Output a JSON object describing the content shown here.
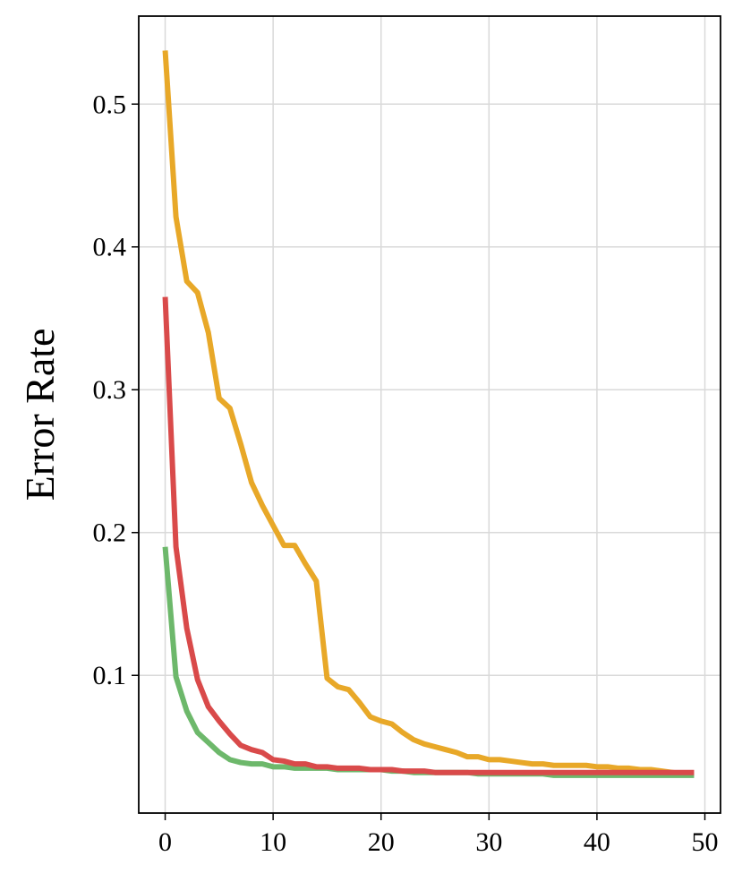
{
  "chart_data": {
    "type": "line",
    "y_label": "Error Rate",
    "x": [
      0,
      1,
      2,
      3,
      4,
      5,
      6,
      7,
      8,
      9,
      10,
      11,
      12,
      13,
      14,
      15,
      16,
      17,
      18,
      19,
      20,
      21,
      22,
      23,
      24,
      25,
      26,
      27,
      28,
      29,
      30,
      31,
      32,
      33,
      34,
      35,
      36,
      37,
      38,
      39,
      40,
      41,
      42,
      43,
      44,
      45,
      46,
      47,
      48,
      49
    ],
    "series": [
      {
        "color": "#e8a828",
        "values": [
          0.5375,
          0.421,
          0.376,
          0.368,
          0.34,
          0.294,
          0.287,
          0.262,
          0.235,
          0.219,
          0.205,
          0.191,
          0.191,
          0.178,
          0.166,
          0.098,
          0.092,
          0.09,
          0.081,
          0.071,
          0.068,
          0.066,
          0.06,
          0.055,
          0.052,
          0.05,
          0.048,
          0.046,
          0.043,
          0.043,
          0.041,
          0.041,
          0.04,
          0.039,
          0.038,
          0.038,
          0.037,
          0.037,
          0.037,
          0.037,
          0.036,
          0.036,
          0.035,
          0.035,
          0.034,
          0.034,
          0.033,
          0.032,
          0.031,
          0.031
        ]
      },
      {
        "color": "#6db86b",
        "values": [
          0.19,
          0.099,
          0.075,
          0.06,
          0.053,
          0.046,
          0.041,
          0.039,
          0.038,
          0.038,
          0.036,
          0.036,
          0.035,
          0.035,
          0.035,
          0.035,
          0.034,
          0.034,
          0.034,
          0.034,
          0.034,
          0.033,
          0.033,
          0.032,
          0.032,
          0.032,
          0.032,
          0.032,
          0.032,
          0.031,
          0.031,
          0.031,
          0.031,
          0.031,
          0.031,
          0.031,
          0.03,
          0.03,
          0.03,
          0.03,
          0.03,
          0.03,
          0.03,
          0.03,
          0.03,
          0.03,
          0.03,
          0.03,
          0.03,
          0.03
        ]
      },
      {
        "color": "#d94a4a",
        "values": [
          0.365,
          0.19,
          0.133,
          0.097,
          0.078,
          0.068,
          0.059,
          0.051,
          0.048,
          0.046,
          0.041,
          0.04,
          0.038,
          0.038,
          0.036,
          0.036,
          0.035,
          0.035,
          0.035,
          0.034,
          0.034,
          0.034,
          0.033,
          0.033,
          0.033,
          0.032,
          0.032,
          0.032,
          0.032,
          0.032,
          0.032,
          0.032,
          0.032,
          0.032,
          0.032,
          0.032,
          0.032,
          0.032,
          0.032,
          0.032,
          0.032,
          0.032,
          0.032,
          0.032,
          0.032,
          0.032,
          0.032,
          0.032,
          0.032,
          0.032
        ]
      }
    ],
    "xlim": [
      -2.45,
      51.45
    ],
    "xticks": [
      0,
      10,
      20,
      30,
      40,
      50
    ],
    "ylim": [
      0.0036,
      0.5616
    ],
    "yticks": [
      0.1,
      0.2,
      0.3,
      0.4,
      0.5
    ],
    "grid": true
  }
}
